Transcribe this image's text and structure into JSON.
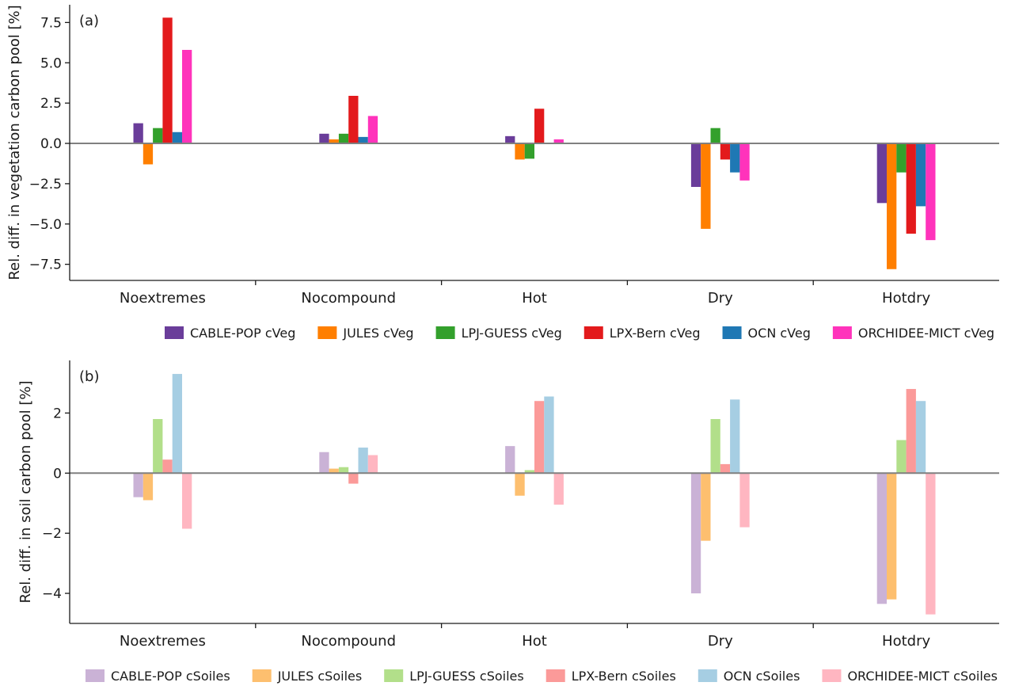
{
  "chart_data": [
    {
      "type": "bar",
      "panel_label": "(a)",
      "ylabel": "Rel. diff. in vegetation carbon pool [%]",
      "xlabel": "",
      "categories": [
        "Noextremes",
        "Nocompound",
        "Hot",
        "Dry",
        "Hotdry"
      ],
      "ylim": [
        -8.5,
        8.6
      ],
      "yticks": [
        -7.5,
        -5.0,
        -2.5,
        0.0,
        2.5,
        5.0,
        7.5
      ],
      "ytick_labels": [
        "−7.5",
        "−5.0",
        "−2.5",
        "0.0",
        "2.5",
        "5.0",
        "7.5"
      ],
      "grid": false,
      "legend_position": "bottom",
      "series": [
        {
          "name": "CABLE-POP cVeg",
          "color": "#6a3d9a",
          "values": [
            1.25,
            0.6,
            0.45,
            -2.7,
            -3.7
          ]
        },
        {
          "name": "JULES cVeg",
          "color": "#ff7f00",
          "values": [
            -1.3,
            0.25,
            -1.0,
            -5.3,
            -7.8
          ]
        },
        {
          "name": "LPJ-GUESS cVeg",
          "color": "#33a02c",
          "values": [
            0.95,
            0.6,
            -0.95,
            0.95,
            -1.8
          ]
        },
        {
          "name": "LPX-Bern cVeg",
          "color": "#e31a1c",
          "values": [
            7.8,
            2.95,
            2.15,
            -1.0,
            -5.6
          ]
        },
        {
          "name": "OCN cVeg",
          "color": "#1f78b4",
          "values": [
            0.7,
            0.4,
            0.0,
            -1.8,
            -3.9
          ]
        },
        {
          "name": "ORCHIDEE-MICT cVeg",
          "color": "#ff33bb",
          "values": [
            5.8,
            1.7,
            0.25,
            -2.3,
            -6.0
          ]
        }
      ]
    },
    {
      "type": "bar",
      "panel_label": "(b)",
      "ylabel": "Rel. diff. in soil carbon pool [%]",
      "xlabel": "",
      "categories": [
        "Noextremes",
        "Nocompound",
        "Hot",
        "Dry",
        "Hotdry"
      ],
      "ylim": [
        -5.0,
        3.75
      ],
      "yticks": [
        -4,
        -2,
        0,
        2
      ],
      "ytick_labels": [
        "−4",
        "−2",
        "0",
        "2"
      ],
      "grid": false,
      "legend_position": "bottom",
      "series": [
        {
          "name": "CABLE-POP cSoiles",
          "color": "#cab2d6",
          "values": [
            -0.8,
            0.7,
            0.9,
            -4.0,
            -4.35
          ]
        },
        {
          "name": "JULES cSoiles",
          "color": "#fdbf6f",
          "values": [
            -0.9,
            0.15,
            -0.75,
            -2.25,
            -4.2
          ]
        },
        {
          "name": "LPJ-GUESS cSoiles",
          "color": "#b2df8a",
          "values": [
            1.8,
            0.2,
            0.1,
            1.8,
            1.1
          ]
        },
        {
          "name": "LPX-Bern cSoiles",
          "color": "#fb9a99",
          "values": [
            0.45,
            -0.35,
            2.4,
            0.3,
            2.8
          ]
        },
        {
          "name": "OCN cSoiles",
          "color": "#a6cee3",
          "values": [
            3.3,
            0.85,
            2.55,
            2.45,
            2.4
          ]
        },
        {
          "name": "ORCHIDEE-MICT cSoiles",
          "color": "#ffb6c1",
          "values": [
            -1.85,
            0.6,
            -1.05,
            -1.8,
            -4.7
          ]
        }
      ]
    }
  ]
}
